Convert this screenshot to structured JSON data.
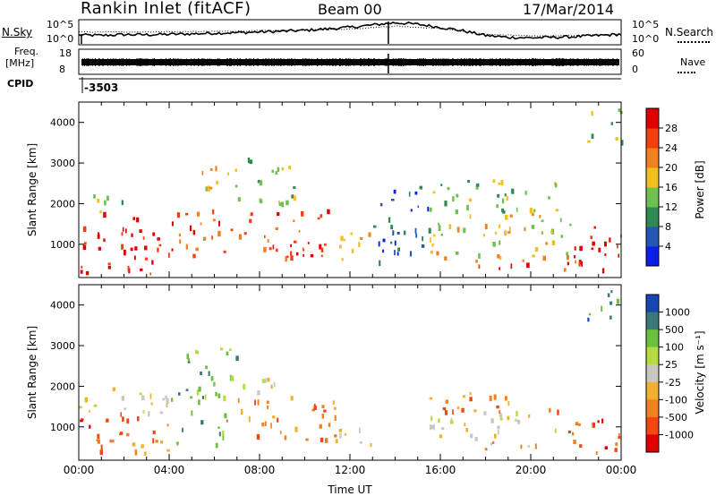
{
  "header": {
    "station": "Rankin Inlet (fitACF)",
    "beam": "Beam 00",
    "date": "17/Mar/2014"
  },
  "chart_data": [
    {
      "type": "line",
      "panel": "noise",
      "left_label": "N.Sky",
      "right_label": "N.Search",
      "left_ticks": [
        "10^5",
        "10^0"
      ],
      "right_ticks": [
        "10^5",
        "10^0"
      ],
      "x_range_hours": [
        0,
        24
      ],
      "series": [
        {
          "style": "solid",
          "x": [
            0,
            1,
            2,
            3,
            4,
            5,
            6,
            7,
            8,
            9,
            10,
            11,
            12,
            13,
            14,
            15,
            16,
            17,
            18,
            19,
            20,
            21,
            22,
            23,
            24
          ],
          "y": [
            0.42,
            0.4,
            0.44,
            0.43,
            0.45,
            0.47,
            0.5,
            0.52,
            0.55,
            0.58,
            0.62,
            0.68,
            0.75,
            0.85,
            0.95,
            0.88,
            0.75,
            0.6,
            0.4,
            0.32,
            0.3,
            0.32,
            0.35,
            0.4,
            0.45
          ]
        },
        {
          "style": "dotted",
          "x": [
            0,
            2,
            4,
            6,
            8,
            10,
            12,
            14,
            16,
            18,
            20,
            22,
            24
          ],
          "y": [
            0.55,
            0.55,
            0.56,
            0.57,
            0.6,
            0.63,
            0.68,
            0.8,
            0.7,
            0.45,
            0.38,
            0.4,
            0.46
          ]
        }
      ]
    },
    {
      "type": "line",
      "panel": "frequency",
      "left_label": "Freq.",
      "left_unit": "[MHz]",
      "right_label": "Nave",
      "left_ticks": [
        "18",
        "8"
      ],
      "right_ticks": [
        "60",
        "0"
      ]
    },
    {
      "type": "table",
      "panel": "cpid",
      "label": "CPID",
      "value": "-3503"
    },
    {
      "type": "heatmap",
      "panel": "power",
      "ylabel": "Slant Range [km]",
      "ylim": [
        180,
        4500
      ],
      "yticks": [
        1000,
        2000,
        3000,
        4000
      ],
      "xlim": [
        0,
        24
      ],
      "colorbar": {
        "label": "Power [dB]",
        "ticks": [
          "4",
          "8",
          "12",
          "16",
          "20",
          "24",
          "28"
        ],
        "colors": [
          "#0a1ee6",
          "#2456b4",
          "#2e8a52",
          "#70c050",
          "#f0c020",
          "#f08020",
          "#f04010",
          "#e00000"
        ]
      },
      "regions": [
        {
          "t": [
            0.0,
            4.3
          ],
          "r": [
            300,
            1800
          ],
          "level": 7
        },
        {
          "t": [
            0.0,
            2.0
          ],
          "r": [
            1800,
            2300
          ],
          "level": 3
        },
        {
          "t": [
            4.3,
            6.0
          ],
          "r": [
            600,
            2000
          ],
          "level": 6
        },
        {
          "t": [
            4.8,
            7.0
          ],
          "r": [
            2300,
            3000
          ],
          "level": 4
        },
        {
          "t": [
            6.0,
            11.0
          ],
          "r": [
            700,
            1900
          ],
          "level": 6
        },
        {
          "t": [
            7.0,
            9.5
          ],
          "r": [
            2000,
            3200
          ],
          "level": 3
        },
        {
          "t": [
            11.0,
            13.0
          ],
          "r": [
            600,
            1300
          ],
          "level": 4
        },
        {
          "t": [
            13.0,
            15.5
          ],
          "r": [
            600,
            2500
          ],
          "level": 1
        },
        {
          "t": [
            15.5,
            21.8
          ],
          "r": [
            700,
            1800
          ],
          "level": 4
        },
        {
          "t": [
            15.5,
            21.8
          ],
          "r": [
            1800,
            2600
          ],
          "level": 3
        },
        {
          "t": [
            17.0,
            23.0
          ],
          "r": [
            400,
            800
          ],
          "level": 6
        },
        {
          "t": [
            21.8,
            24.0
          ],
          "r": [
            300,
            1500
          ],
          "level": 7
        },
        {
          "t": [
            22.5,
            24.0
          ],
          "r": [
            3500,
            4400
          ],
          "level": 3
        }
      ]
    },
    {
      "type": "heatmap",
      "panel": "velocity",
      "ylabel": "Slant Range [km]",
      "xlabel": "Time UT",
      "ylim": [
        180,
        4500
      ],
      "yticks": [
        1000,
        2000,
        3000,
        4000
      ],
      "xlim": [
        0,
        24
      ],
      "xticks": [
        "00:00",
        "04:00",
        "08:00",
        "12:00",
        "16:00",
        "20:00",
        "00:00"
      ],
      "colorbar": {
        "label": "Velocity [m s⁻¹]",
        "ticks": [
          "1000",
          "500",
          "100",
          "25",
          "-25",
          "-100",
          "-500",
          "-1000"
        ],
        "colors": [
          "#1446b4",
          "#3c7878",
          "#6cc040",
          "#b4dc40",
          "#c8c8c0",
          "#f0b030",
          "#f08020",
          "#f04810",
          "#e00000"
        ]
      },
      "regions": [
        {
          "t": [
            0.0,
            1.5
          ],
          "r": [
            300,
            1500
          ],
          "level": 7
        },
        {
          "t": [
            0.0,
            4.0
          ],
          "r": [
            1300,
            2000
          ],
          "level": 4
        },
        {
          "t": [
            1.5,
            4.0
          ],
          "r": [
            300,
            1400
          ],
          "level": 6
        },
        {
          "t": [
            4.0,
            6.5
          ],
          "r": [
            500,
            2000
          ],
          "level": 2
        },
        {
          "t": [
            4.5,
            7.0
          ],
          "r": [
            2000,
            3000
          ],
          "level": 2
        },
        {
          "t": [
            6.5,
            11.5
          ],
          "r": [
            700,
            1800
          ],
          "level": 6
        },
        {
          "t": [
            7.0,
            9.0
          ],
          "r": [
            1800,
            2400
          ],
          "level": 4
        },
        {
          "t": [
            11.5,
            13.0
          ],
          "r": [
            600,
            1200
          ],
          "level": 5
        },
        {
          "t": [
            15.5,
            21.5
          ],
          "r": [
            700,
            1400
          ],
          "level": 4
        },
        {
          "t": [
            15.5,
            21.5
          ],
          "r": [
            1400,
            1900
          ],
          "level": 6
        },
        {
          "t": [
            17.5,
            20.5
          ],
          "r": [
            400,
            700
          ],
          "level": 5
        },
        {
          "t": [
            21.5,
            24.0
          ],
          "r": [
            300,
            1300
          ],
          "level": 7
        },
        {
          "t": [
            22.5,
            24.0
          ],
          "r": [
            3500,
            4400
          ],
          "level": 1
        }
      ]
    }
  ]
}
